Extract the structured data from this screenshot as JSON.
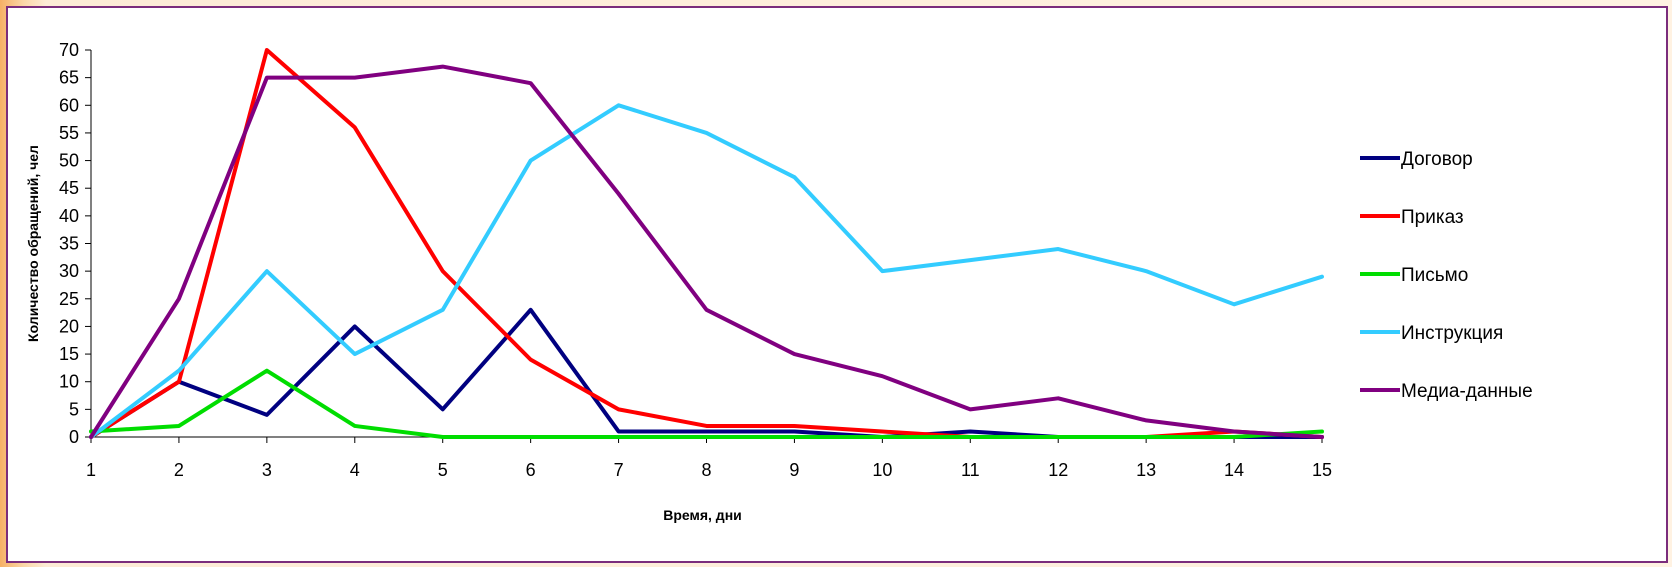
{
  "chart_data": {
    "type": "line",
    "title": "",
    "xlabel": "Время, дни",
    "ylabel": "Количество обращений, чел",
    "x": [
      1,
      2,
      3,
      4,
      5,
      6,
      7,
      8,
      9,
      10,
      11,
      12,
      13,
      14,
      15
    ],
    "xlim": [
      1,
      15
    ],
    "ylim": [
      0,
      70
    ],
    "yticks": [
      0,
      5,
      10,
      15,
      20,
      25,
      30,
      35,
      40,
      45,
      50,
      55,
      60,
      65,
      70
    ],
    "grid": false,
    "legend_position": "right",
    "series": [
      {
        "name": "Договор",
        "color": "#000080",
        "values": [
          0,
          10,
          4,
          20,
          5,
          23,
          1,
          1,
          1,
          0,
          1,
          0,
          0,
          0,
          0
        ]
      },
      {
        "name": "Приказ",
        "color": "#ff0000",
        "values": [
          0,
          10,
          70,
          56,
          30,
          14,
          5,
          2,
          2,
          1,
          0,
          0,
          0,
          1,
          0
        ]
      },
      {
        "name": "Письмо",
        "color": "#00dd00",
        "values": [
          1,
          2,
          12,
          2,
          0,
          0,
          0,
          0,
          0,
          0,
          0,
          0,
          0,
          0,
          1
        ]
      },
      {
        "name": "Инструкция",
        "color": "#33ccff",
        "values": [
          0,
          12,
          30,
          15,
          23,
          50,
          60,
          55,
          47,
          30,
          32,
          34,
          30,
          24,
          29
        ]
      },
      {
        "name": "Медиа-данные",
        "color": "#800080",
        "values": [
          0,
          25,
          65,
          65,
          67,
          64,
          44,
          23,
          15,
          11,
          5,
          7,
          3,
          1,
          0
        ]
      }
    ]
  }
}
